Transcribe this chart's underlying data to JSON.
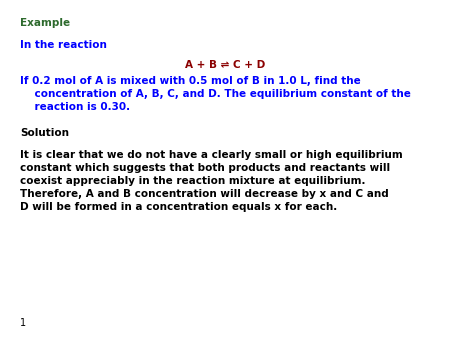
{
  "background_color": "#ffffff",
  "example_text": "Example",
  "example_color": "#2d6a2d",
  "example_fontsize": 7.5,
  "in_reaction_text": "In the reaction",
  "in_reaction_color": "#0000ff",
  "in_reaction_fontsize": 7.5,
  "reaction_equation": "A + B ⇌ C + D",
  "reaction_color": "#8b0000",
  "reaction_fontsize": 7.5,
  "problem_line1": "If 0.2 mol of A is mixed with 0.5 mol of B in 1.0 L, find the",
  "problem_line2": "    concentration of A, B, C, and D. The equilibrium constant of the",
  "problem_line3": "    reaction is 0.30.",
  "problem_color": "#0000ff",
  "problem_fontsize": 7.5,
  "solution_text": "Solution",
  "solution_color": "#000000",
  "solution_fontsize": 7.5,
  "body_line1": "It is clear that we do not have a clearly small or high equilibrium",
  "body_line2": "constant which suggests that both products and reactants will",
  "body_line3": "coexist appreciably in the reaction mixture at equilibrium.",
  "body_line4": "Therefore, A and B concentration will decrease by x and C and",
  "body_line5": "D will be formed in a concentration equals x for each.",
  "body_color": "#000000",
  "body_fontsize": 7.5,
  "page_number": "1",
  "page_number_color": "#000000",
  "page_number_fontsize": 7
}
